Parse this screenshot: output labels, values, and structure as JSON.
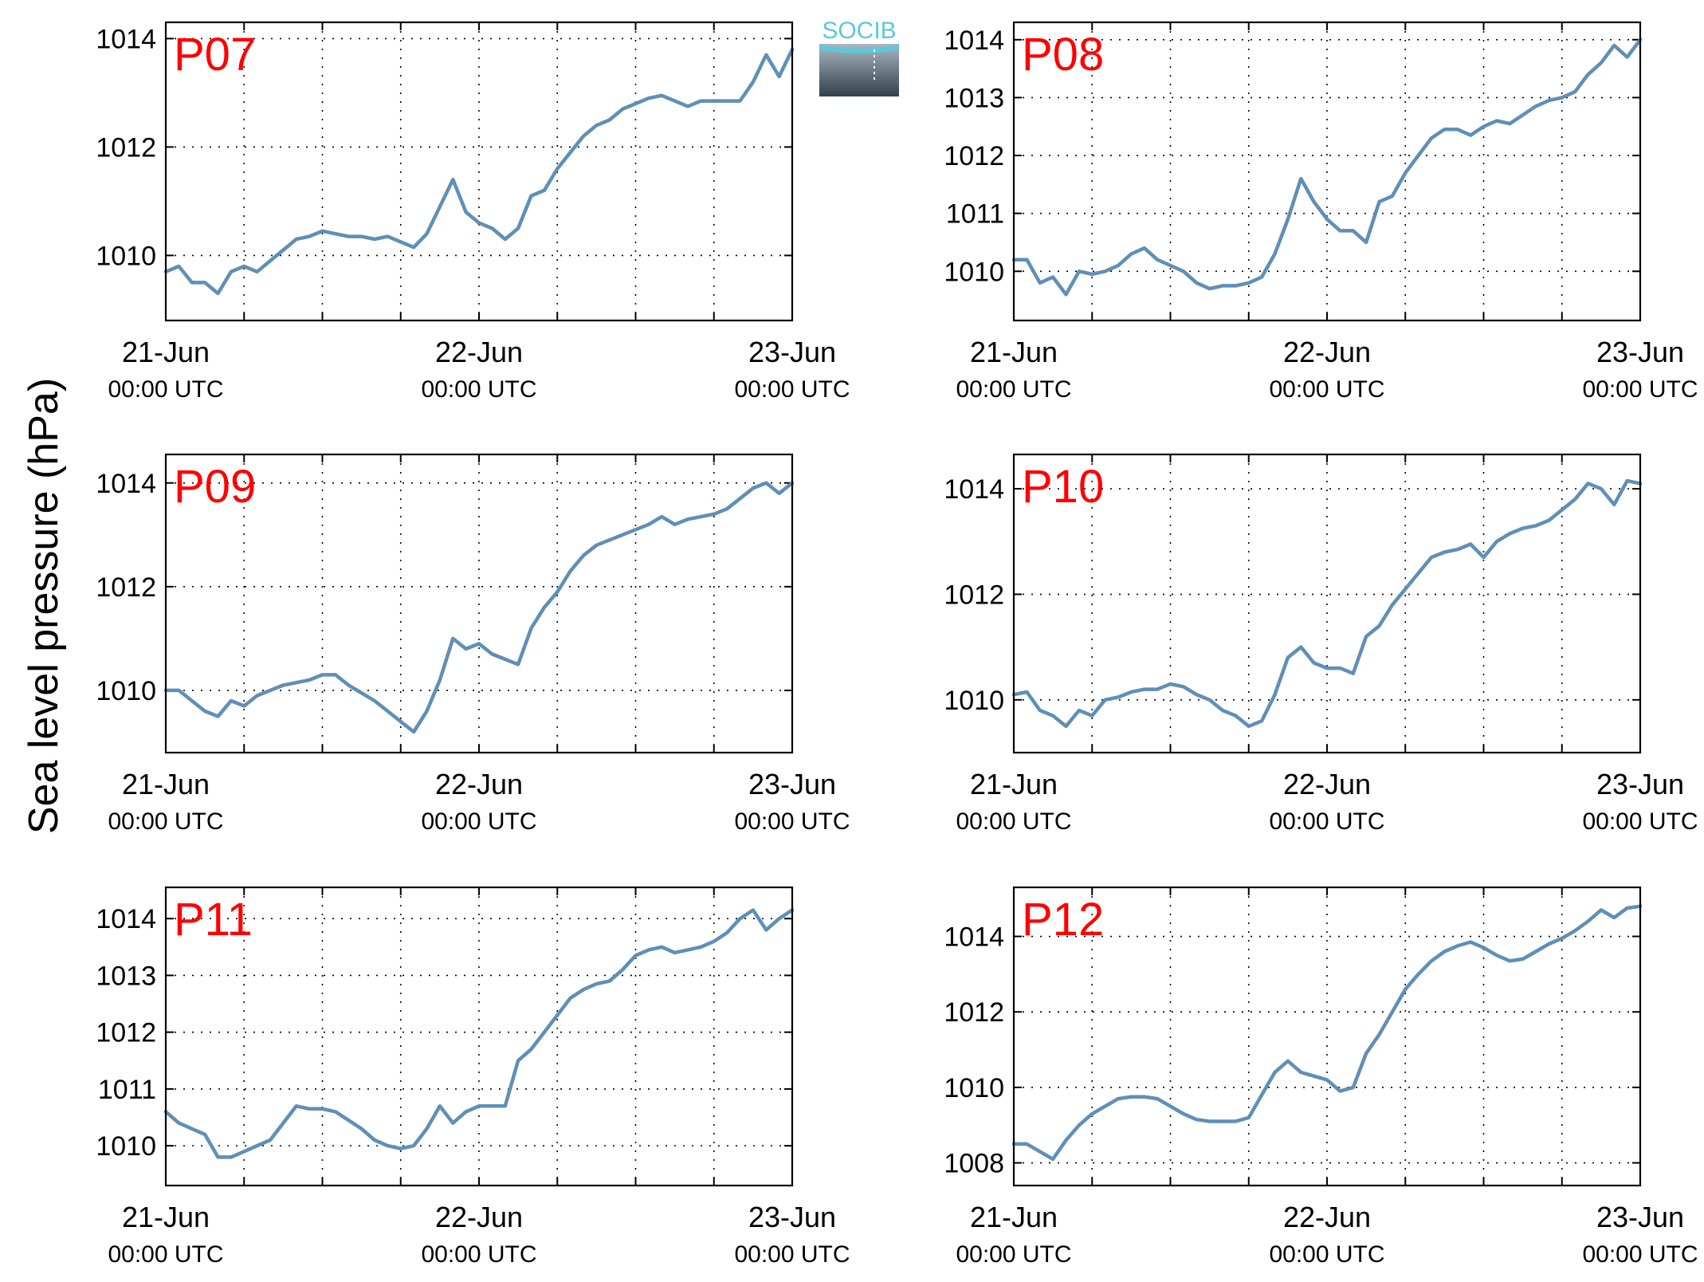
{
  "figure": {
    "ylabel": "Sea level pressure (hPa)",
    "logo_text": "SOCIB",
    "line_color": "#5f8fb6",
    "panel_title_color": "#ff0000"
  },
  "chart_data": [
    {
      "type": "line",
      "title": "P07",
      "x_ticks": [
        "21-Jun",
        "22-Jun",
        "23-Jun"
      ],
      "x_tick_sub": "00:00 UTC",
      "x_range_hours": [
        0,
        48
      ],
      "ylim": [
        1008.8,
        1014.3
      ],
      "yticks": [
        1010,
        1012,
        1014
      ],
      "grid": true,
      "series": [
        {
          "x": [
            0,
            1,
            2,
            3,
            4,
            5,
            6,
            7,
            8,
            9,
            10,
            11,
            12,
            13,
            14,
            15,
            16,
            17,
            18,
            19,
            20,
            21,
            22,
            23,
            24,
            25,
            26,
            27,
            28,
            29,
            30,
            31,
            32,
            33,
            34,
            35,
            36,
            37,
            38,
            39,
            40,
            41,
            42,
            43,
            44,
            45,
            46,
            47,
            48
          ],
          "y": [
            1009.7,
            1009.8,
            1009.5,
            1009.5,
            1009.3,
            1009.7,
            1009.8,
            1009.7,
            1009.9,
            1010.1,
            1010.3,
            1010.35,
            1010.45,
            1010.4,
            1010.35,
            1010.35,
            1010.3,
            1010.35,
            1010.25,
            1010.15,
            1010.4,
            1010.9,
            1011.4,
            1010.8,
            1010.6,
            1010.5,
            1010.3,
            1010.5,
            1011.1,
            1011.2,
            1011.6,
            1011.9,
            1012.2,
            1012.4,
            1012.5,
            1012.7,
            1012.8,
            1012.9,
            1012.95,
            1012.85,
            1012.75,
            1012.85,
            1012.85,
            1012.85,
            1012.85,
            1013.2,
            1013.7,
            1013.3,
            1013.8
          ]
        }
      ]
    },
    {
      "type": "line",
      "title": "P08",
      "x_ticks": [
        "21-Jun",
        "22-Jun",
        "23-Jun"
      ],
      "x_tick_sub": "00:00 UTC",
      "x_range_hours": [
        0,
        48
      ],
      "ylim": [
        1009.15,
        1014.3
      ],
      "yticks": [
        1010,
        1011,
        1012,
        1013,
        1014
      ],
      "grid": true,
      "series": [
        {
          "x": [
            0,
            1,
            2,
            3,
            4,
            5,
            6,
            7,
            8,
            9,
            10,
            11,
            12,
            13,
            14,
            15,
            16,
            17,
            18,
            19,
            20,
            21,
            22,
            23,
            24,
            25,
            26,
            27,
            28,
            29,
            30,
            31,
            32,
            33,
            34,
            35,
            36,
            37,
            38,
            39,
            40,
            41,
            42,
            43,
            44,
            45,
            46,
            47,
            48
          ],
          "y": [
            1010.2,
            1010.2,
            1009.8,
            1009.9,
            1009.6,
            1010.0,
            1009.95,
            1010.0,
            1010.1,
            1010.3,
            1010.4,
            1010.2,
            1010.1,
            1010.0,
            1009.8,
            1009.7,
            1009.75,
            1009.75,
            1009.8,
            1009.9,
            1010.3,
            1010.9,
            1011.6,
            1011.2,
            1010.9,
            1010.7,
            1010.7,
            1010.5,
            1011.2,
            1011.3,
            1011.7,
            1012.0,
            1012.3,
            1012.45,
            1012.45,
            1012.35,
            1012.5,
            1012.6,
            1012.55,
            1012.7,
            1012.85,
            1012.95,
            1013.0,
            1013.1,
            1013.4,
            1013.6,
            1013.9,
            1013.7,
            1014.0
          ]
        }
      ]
    },
    {
      "type": "line",
      "title": "P09",
      "x_ticks": [
        "21-Jun",
        "22-Jun",
        "23-Jun"
      ],
      "x_tick_sub": "00:00 UTC",
      "x_range_hours": [
        0,
        48
      ],
      "ylim": [
        1008.8,
        1014.55
      ],
      "yticks": [
        1010,
        1012,
        1014
      ],
      "grid": true,
      "series": [
        {
          "x": [
            0,
            1,
            2,
            3,
            4,
            5,
            6,
            7,
            8,
            9,
            10,
            11,
            12,
            13,
            14,
            15,
            16,
            17,
            18,
            19,
            20,
            21,
            22,
            23,
            24,
            25,
            26,
            27,
            28,
            29,
            30,
            31,
            32,
            33,
            34,
            35,
            36,
            37,
            38,
            39,
            40,
            41,
            42,
            43,
            44,
            45,
            46,
            47,
            48
          ],
          "y": [
            1010.0,
            1010.0,
            1009.8,
            1009.6,
            1009.5,
            1009.8,
            1009.7,
            1009.9,
            1010.0,
            1010.1,
            1010.15,
            1010.2,
            1010.3,
            1010.3,
            1010.1,
            1009.95,
            1009.8,
            1009.6,
            1009.4,
            1009.2,
            1009.6,
            1010.2,
            1011.0,
            1010.8,
            1010.9,
            1010.7,
            1010.6,
            1010.5,
            1011.2,
            1011.6,
            1011.9,
            1012.3,
            1012.6,
            1012.8,
            1012.9,
            1013.0,
            1013.1,
            1013.2,
            1013.35,
            1013.2,
            1013.3,
            1013.35,
            1013.4,
            1013.5,
            1013.7,
            1013.9,
            1014.0,
            1013.8,
            1014.0
          ]
        }
      ]
    },
    {
      "type": "line",
      "title": "P10",
      "x_ticks": [
        "21-Jun",
        "22-Jun",
        "23-Jun"
      ],
      "x_tick_sub": "00:00 UTC",
      "x_range_hours": [
        0,
        48
      ],
      "ylim": [
        1009.0,
        1014.65
      ],
      "yticks": [
        1010,
        1012,
        1014
      ],
      "grid": true,
      "series": [
        {
          "x": [
            0,
            1,
            2,
            3,
            4,
            5,
            6,
            7,
            8,
            9,
            10,
            11,
            12,
            13,
            14,
            15,
            16,
            17,
            18,
            19,
            20,
            21,
            22,
            23,
            24,
            25,
            26,
            27,
            28,
            29,
            30,
            31,
            32,
            33,
            34,
            35,
            36,
            37,
            38,
            39,
            40,
            41,
            42,
            43,
            44,
            45,
            46,
            47,
            48
          ],
          "y": [
            1010.1,
            1010.15,
            1009.8,
            1009.7,
            1009.5,
            1009.8,
            1009.7,
            1010.0,
            1010.05,
            1010.15,
            1010.2,
            1010.2,
            1010.3,
            1010.25,
            1010.1,
            1010.0,
            1009.8,
            1009.7,
            1009.5,
            1009.6,
            1010.1,
            1010.8,
            1011.0,
            1010.7,
            1010.6,
            1010.6,
            1010.5,
            1011.2,
            1011.4,
            1011.8,
            1012.1,
            1012.4,
            1012.7,
            1012.8,
            1012.85,
            1012.95,
            1012.7,
            1013.0,
            1013.15,
            1013.25,
            1013.3,
            1013.4,
            1013.6,
            1013.8,
            1014.1,
            1014.0,
            1013.7,
            1014.15,
            1014.1
          ]
        }
      ]
    },
    {
      "type": "line",
      "title": "P11",
      "x_ticks": [
        "21-Jun",
        "22-Jun",
        "23-Jun"
      ],
      "x_tick_sub": "00:00 UTC",
      "x_range_hours": [
        0,
        48
      ],
      "ylim": [
        1009.3,
        1014.55
      ],
      "yticks": [
        1010,
        1011,
        1012,
        1013,
        1014
      ],
      "grid": true,
      "series": [
        {
          "x": [
            0,
            1,
            2,
            3,
            4,
            5,
            6,
            7,
            8,
            9,
            10,
            11,
            12,
            13,
            14,
            15,
            16,
            17,
            18,
            19,
            20,
            21,
            22,
            23,
            24,
            25,
            26,
            27,
            28,
            29,
            30,
            31,
            32,
            33,
            34,
            35,
            36,
            37,
            38,
            39,
            40,
            41,
            42,
            43,
            44,
            45,
            46,
            47,
            48
          ],
          "y": [
            1010.6,
            1010.4,
            1010.3,
            1010.2,
            1009.8,
            1009.8,
            1009.9,
            1010.0,
            1010.1,
            1010.4,
            1010.7,
            1010.65,
            1010.65,
            1010.6,
            1010.45,
            1010.3,
            1010.1,
            1010.0,
            1009.95,
            1010.0,
            1010.3,
            1010.7,
            1010.4,
            1010.6,
            1010.7,
            1010.7,
            1010.7,
            1011.5,
            1011.7,
            1012.0,
            1012.3,
            1012.6,
            1012.75,
            1012.85,
            1012.9,
            1013.1,
            1013.35,
            1013.45,
            1013.5,
            1013.4,
            1013.45,
            1013.5,
            1013.6,
            1013.75,
            1014.0,
            1014.15,
            1013.8,
            1014.0,
            1014.15
          ]
        }
      ]
    },
    {
      "type": "line",
      "title": "P12",
      "x_ticks": [
        "21-Jun",
        "22-Jun",
        "23-Jun"
      ],
      "x_tick_sub": "00:00 UTC",
      "x_range_hours": [
        0,
        48
      ],
      "ylim": [
        1007.4,
        1015.3
      ],
      "yticks": [
        1008,
        1010,
        1012,
        1014
      ],
      "grid": true,
      "series": [
        {
          "x": [
            0,
            1,
            2,
            3,
            4,
            5,
            6,
            7,
            8,
            9,
            10,
            11,
            12,
            13,
            14,
            15,
            16,
            17,
            18,
            19,
            20,
            21,
            22,
            23,
            24,
            25,
            26,
            27,
            28,
            29,
            30,
            31,
            32,
            33,
            34,
            35,
            36,
            37,
            38,
            39,
            40,
            41,
            42,
            43,
            44,
            45,
            46,
            47,
            48
          ],
          "y": [
            1008.5,
            1008.5,
            1008.3,
            1008.1,
            1008.6,
            1009.0,
            1009.3,
            1009.5,
            1009.7,
            1009.75,
            1009.75,
            1009.7,
            1009.5,
            1009.3,
            1009.15,
            1009.1,
            1009.1,
            1009.1,
            1009.2,
            1009.8,
            1010.4,
            1010.7,
            1010.4,
            1010.3,
            1010.2,
            1009.9,
            1010.0,
            1010.9,
            1011.4,
            1012.0,
            1012.6,
            1013.0,
            1013.35,
            1013.6,
            1013.75,
            1013.85,
            1013.7,
            1013.5,
            1013.35,
            1013.4,
            1013.6,
            1013.8,
            1013.95,
            1014.15,
            1014.4,
            1014.7,
            1014.5,
            1014.75,
            1014.8
          ]
        }
      ]
    }
  ]
}
